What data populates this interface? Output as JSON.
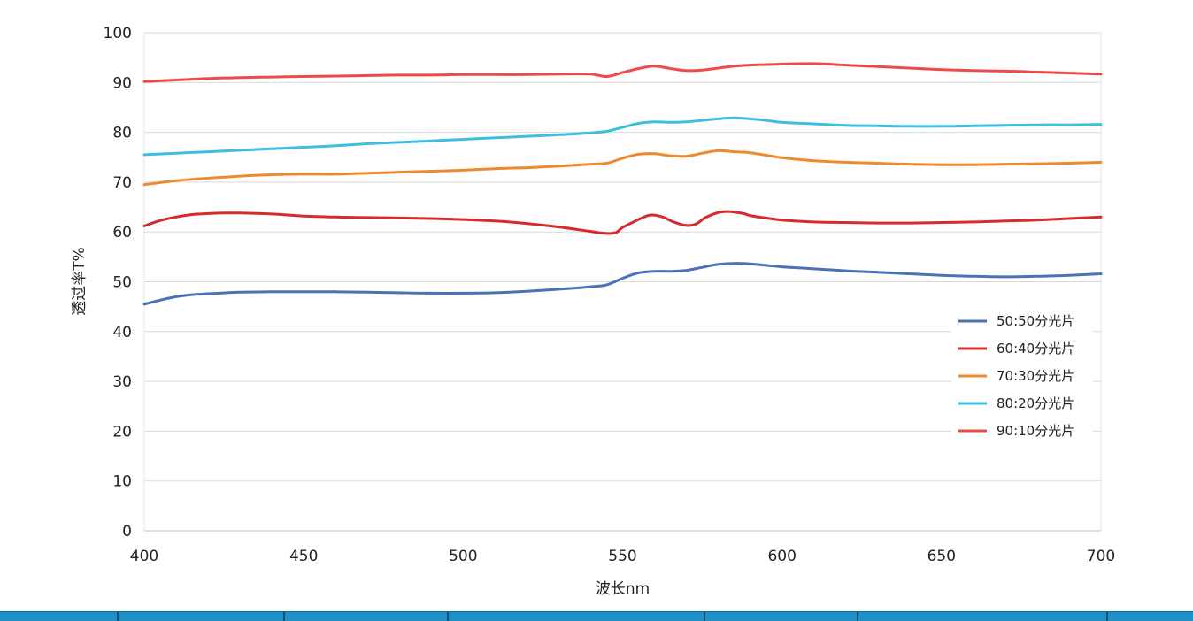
{
  "chart_data": {
    "type": "line",
    "title": "",
    "xlabel": "波长nm",
    "ylabel": "透过率T%",
    "xlim": [
      400,
      700
    ],
    "ylim": [
      0,
      100
    ],
    "x_ticks": [
      400,
      450,
      500,
      550,
      600,
      650,
      700
    ],
    "y_ticks": [
      0,
      10,
      20,
      30,
      40,
      50,
      60,
      70,
      80,
      90,
      100
    ],
    "grid": "horizontal",
    "legend_position": "right",
    "series": [
      {
        "name": "50:50分光片",
        "color": "#4a72b8",
        "x": [
          400,
          405,
          410,
          415,
          420,
          430,
          440,
          450,
          460,
          470,
          480,
          490,
          500,
          510,
          520,
          530,
          540,
          545,
          550,
          555,
          560,
          565,
          570,
          575,
          580,
          585,
          590,
          595,
          600,
          610,
          620,
          630,
          640,
          650,
          660,
          670,
          680,
          690,
          700
        ],
        "y": [
          45.5,
          46.3,
          47.0,
          47.4,
          47.6,
          47.9,
          48.0,
          48.0,
          48.0,
          47.9,
          47.8,
          47.7,
          47.7,
          47.8,
          48.1,
          48.5,
          49.0,
          49.4,
          50.7,
          51.8,
          52.1,
          52.1,
          52.3,
          52.9,
          53.5,
          53.7,
          53.6,
          53.3,
          53.0,
          52.6,
          52.2,
          51.9,
          51.6,
          51.3,
          51.1,
          51.0,
          51.1,
          51.3,
          51.6
        ]
      },
      {
        "name": "60:40分光片",
        "color": "#d42b2b",
        "x": [
          400,
          405,
          410,
          415,
          420,
          425,
          430,
          440,
          450,
          460,
          470,
          480,
          490,
          500,
          510,
          520,
          530,
          540,
          545,
          548,
          550,
          555,
          558,
          560,
          563,
          566,
          570,
          573,
          576,
          580,
          583,
          585,
          588,
          590,
          595,
          600,
          610,
          620,
          630,
          640,
          650,
          660,
          670,
          680,
          690,
          700
        ],
        "y": [
          61.2,
          62.3,
          63.0,
          63.5,
          63.7,
          63.8,
          63.8,
          63.6,
          63.2,
          63.0,
          62.9,
          62.8,
          62.7,
          62.5,
          62.2,
          61.7,
          61.0,
          60.1,
          59.7,
          59.9,
          60.9,
          62.5,
          63.3,
          63.4,
          62.9,
          62.0,
          61.3,
          61.6,
          62.9,
          63.9,
          64.1,
          64.0,
          63.7,
          63.3,
          62.8,
          62.4,
          62.0,
          61.9,
          61.8,
          61.8,
          61.9,
          62.0,
          62.2,
          62.4,
          62.7,
          63.0
        ]
      },
      {
        "name": "70:30分光片",
        "color": "#ee8a2e",
        "x": [
          400,
          410,
          420,
          430,
          440,
          450,
          460,
          470,
          480,
          490,
          500,
          510,
          520,
          530,
          540,
          545,
          550,
          555,
          560,
          565,
          570,
          575,
          580,
          585,
          590,
          595,
          600,
          610,
          620,
          630,
          640,
          650,
          660,
          670,
          680,
          690,
          700
        ],
        "y": [
          69.5,
          70.3,
          70.8,
          71.2,
          71.5,
          71.6,
          71.6,
          71.8,
          72.0,
          72.2,
          72.4,
          72.7,
          72.9,
          73.2,
          73.6,
          73.8,
          74.8,
          75.6,
          75.7,
          75.3,
          75.2,
          75.8,
          76.3,
          76.1,
          75.9,
          75.4,
          74.9,
          74.3,
          74.0,
          73.8,
          73.6,
          73.5,
          73.5,
          73.6,
          73.7,
          73.8,
          74.0
        ]
      },
      {
        "name": "80:20分光片",
        "color": "#3cbde2",
        "x": [
          400,
          410,
          420,
          430,
          440,
          450,
          460,
          470,
          480,
          490,
          500,
          510,
          520,
          530,
          540,
          545,
          550,
          555,
          560,
          565,
          570,
          575,
          580,
          585,
          590,
          595,
          600,
          610,
          620,
          630,
          640,
          650,
          660,
          670,
          680,
          690,
          700
        ],
        "y": [
          75.5,
          75.8,
          76.1,
          76.4,
          76.7,
          77.0,
          77.3,
          77.7,
          78.0,
          78.3,
          78.6,
          78.9,
          79.2,
          79.5,
          79.9,
          80.2,
          81.0,
          81.8,
          82.1,
          82.0,
          82.1,
          82.4,
          82.7,
          82.9,
          82.7,
          82.4,
          82.0,
          81.7,
          81.4,
          81.3,
          81.2,
          81.2,
          81.3,
          81.4,
          81.5,
          81.5,
          81.6
        ]
      },
      {
        "name": "90:10分光片",
        "color": "#ee4a4a",
        "x": [
          400,
          410,
          420,
          430,
          440,
          450,
          460,
          470,
          480,
          490,
          500,
          510,
          520,
          530,
          540,
          545,
          550,
          555,
          560,
          565,
          570,
          575,
          580,
          585,
          590,
          595,
          600,
          610,
          620,
          630,
          640,
          650,
          660,
          670,
          680,
          690,
          700
        ],
        "y": [
          90.2,
          90.5,
          90.8,
          91.0,
          91.1,
          91.2,
          91.3,
          91.4,
          91.5,
          91.5,
          91.6,
          91.6,
          91.6,
          91.7,
          91.7,
          91.2,
          92.0,
          92.8,
          93.3,
          92.8,
          92.4,
          92.5,
          92.9,
          93.3,
          93.5,
          93.6,
          93.7,
          93.8,
          93.5,
          93.2,
          92.9,
          92.6,
          92.4,
          92.3,
          92.1,
          91.9,
          91.7
        ]
      }
    ]
  }
}
